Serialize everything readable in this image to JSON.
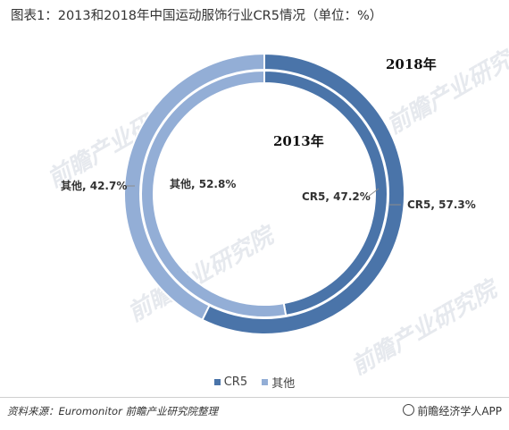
{
  "title": "图表1：2013和2018年中国运动服饰行业CR5情况（单位：%）",
  "chart_data": [
    {
      "type": "pie",
      "name": "2018年",
      "ring": "outer",
      "labels": [
        "CR5",
        "其他"
      ],
      "values": [
        57.3,
        42.7
      ],
      "data_labels": [
        "CR5, 57.3%",
        "其他, 42.7%"
      ]
    },
    {
      "type": "pie",
      "name": "2013年",
      "ring": "inner",
      "labels": [
        "CR5",
        "其他"
      ],
      "values": [
        47.2,
        52.8
      ],
      "data_labels": [
        "CR5, 47.2%",
        "其他, 52.8%"
      ]
    }
  ],
  "colors": {
    "CR5": "#4a74a9",
    "其他": "#93aed6"
  },
  "legend": {
    "items": [
      "CR5",
      "其他"
    ],
    "position": "bottom"
  },
  "watermark": "前瞻产业研究院",
  "source": "资料来源：Euromonitor 前瞻产业研究院整理",
  "brand": "前瞻经济学人APP"
}
